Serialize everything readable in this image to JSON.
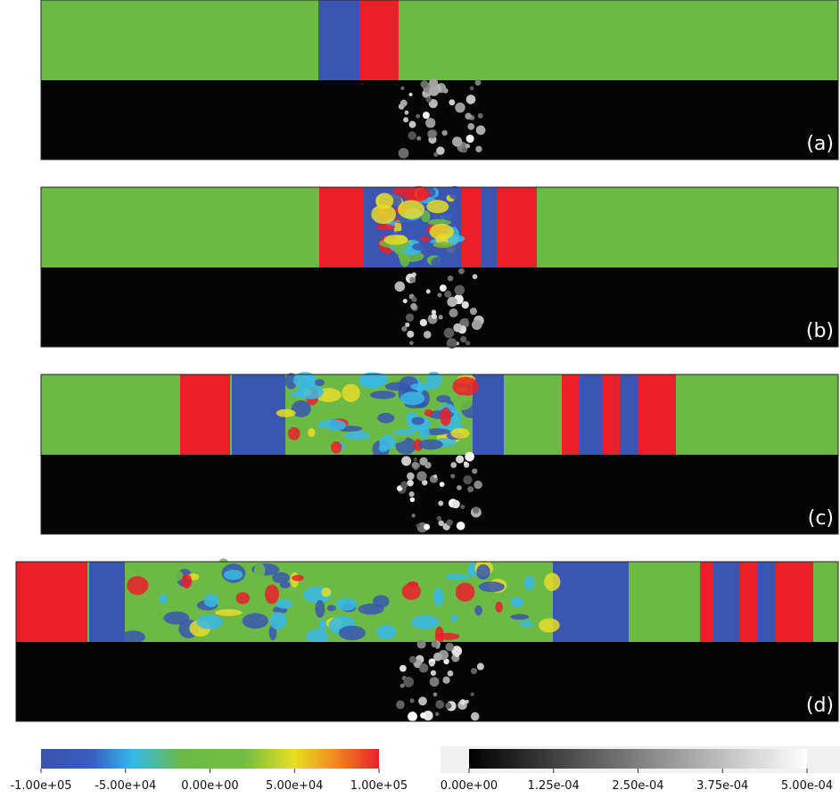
{
  "panels": [
    {
      "label": "(a)"
    },
    {
      "label": "(b)"
    },
    {
      "label": "(c)"
    },
    {
      "label": "(d)"
    }
  ],
  "colorbars": [
    {
      "lim": [
        -100000,
        100000
      ],
      "ticks": [
        {
          "value": -100000,
          "label": "-1.00e+05"
        },
        {
          "value": -50000,
          "label": "-5.00e+04"
        },
        {
          "value": 0,
          "label": "0.00e+00"
        },
        {
          "value": 50000,
          "label": "5.00e+04"
        },
        {
          "value": 100000,
          "label": "1.00e+05"
        }
      ]
    },
    {
      "lim": [
        0,
        0.0005
      ],
      "ticks": [
        {
          "value": 0,
          "label": "0.00e+00"
        },
        {
          "value": 0.000125,
          "label": "1.25e-04"
        },
        {
          "value": 0.00025,
          "label": "2.50e-04"
        },
        {
          "value": 0.000375,
          "label": "3.75e-04"
        },
        {
          "value": 0.0005,
          "label": "5.00e-04"
        }
      ]
    }
  ]
}
